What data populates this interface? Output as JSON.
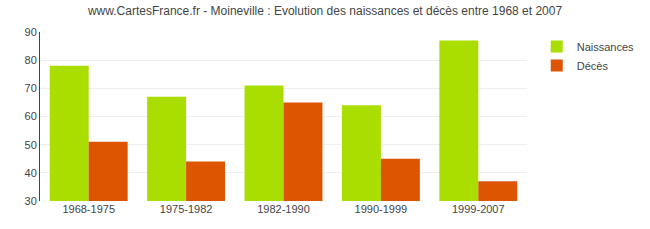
{
  "chart_data": {
    "type": "bar",
    "title": "www.CartesFrance.fr - Moineville : Evolution des naissances et décès entre 1968 et 2007",
    "categories": [
      "1968-1975",
      "1975-1982",
      "1982-1990",
      "1990-1999",
      "1999-2007"
    ],
    "series": [
      {
        "name": "Naissances",
        "color": "#aadd00",
        "values": [
          78,
          67,
          71,
          64,
          87
        ]
      },
      {
        "name": "Décès",
        "color": "#dd5500",
        "values": [
          51,
          44,
          65,
          45,
          37
        ]
      }
    ],
    "ylim": [
      30,
      90
    ],
    "yticks": [
      30,
      40,
      50,
      60,
      70,
      80,
      90
    ],
    "grid": true,
    "legend": "upper right"
  }
}
